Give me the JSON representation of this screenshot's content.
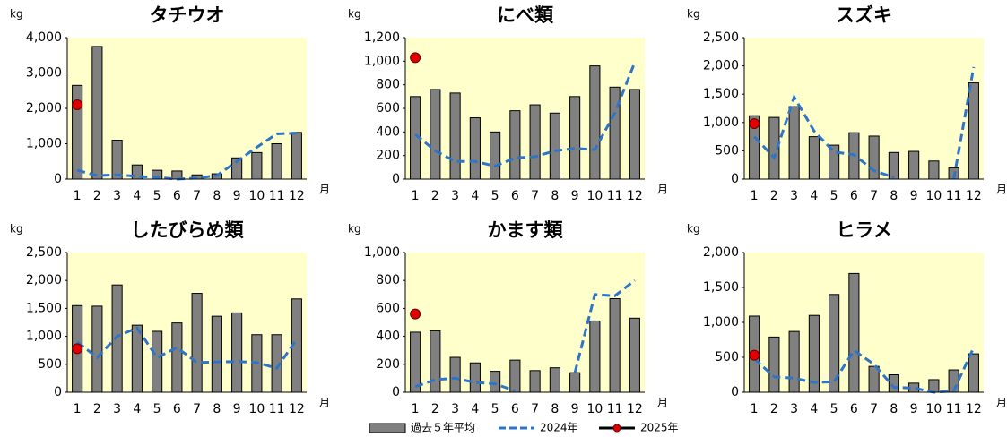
{
  "chart_data": [
    {
      "type": "combo",
      "title": "タチウオ",
      "y_label": "kg",
      "x_label": "月",
      "categories": [
        "1",
        "2",
        "3",
        "4",
        "5",
        "6",
        "7",
        "8",
        "9",
        "10",
        "11",
        "12"
      ],
      "ylim": [
        0,
        4000
      ],
      "yticks": [
        0,
        {
          "value": 1000,
          "label": "1,000"
        },
        {
          "value": 2000,
          "label": "2,000"
        },
        {
          "value": 3000,
          "label": "3,000"
        },
        {
          "value": 4000,
          "label": "4,000"
        }
      ],
      "series": [
        {
          "name": "過去５年平均",
          "type": "bar",
          "color": "#808080",
          "values": [
            2650,
            3750,
            1100,
            400,
            250,
            230,
            120,
            150,
            600,
            750,
            1000,
            1320
          ]
        },
        {
          "name": "2024年",
          "type": "line",
          "dash": true,
          "color": "#2e75c8",
          "values": [
            250,
            100,
            120,
            80,
            50,
            0,
            30,
            100,
            500,
            900,
            1280,
            1300
          ]
        },
        {
          "name": "2025年",
          "type": "line",
          "marker": true,
          "color": "#e00000",
          "values": [
            2100,
            null,
            null,
            null,
            null,
            null,
            null,
            null,
            null,
            null,
            null,
            null
          ]
        }
      ]
    },
    {
      "type": "combo",
      "title": "にべ類",
      "y_label": "kg",
      "x_label": "月",
      "categories": [
        "1",
        "2",
        "3",
        "4",
        "5",
        "6",
        "7",
        "8",
        "9",
        "10",
        "11",
        "12"
      ],
      "ylim": [
        0,
        1200
      ],
      "yticks": [
        0,
        200,
        400,
        600,
        800,
        {
          "value": 1000,
          "label": "1,000"
        },
        {
          "value": 1200,
          "label": "1,200"
        }
      ],
      "series": [
        {
          "name": "過去５年平均",
          "type": "bar",
          "color": "#808080",
          "values": [
            700,
            760,
            730,
            520,
            400,
            580,
            630,
            560,
            700,
            960,
            780,
            760
          ]
        },
        {
          "name": "2024年",
          "type": "line",
          "dash": true,
          "color": "#2e75c8",
          "values": [
            380,
            240,
            150,
            150,
            110,
            180,
            190,
            240,
            260,
            250,
            560,
            990
          ]
        },
        {
          "name": "2025年",
          "type": "line",
          "marker": true,
          "color": "#e00000",
          "values": [
            1030,
            null,
            null,
            null,
            null,
            null,
            null,
            null,
            null,
            null,
            null,
            null
          ]
        }
      ]
    },
    {
      "type": "combo",
      "title": "スズキ",
      "y_label": "kg",
      "x_label": "月",
      "categories": [
        "1",
        "2",
        "3",
        "4",
        "5",
        "6",
        "7",
        "8",
        "9",
        "10",
        "11",
        "12"
      ],
      "ylim": [
        0,
        2500
      ],
      "yticks": [
        0,
        500,
        {
          "value": 1000,
          "label": "1,000"
        },
        {
          "value": 1500,
          "label": "1,500"
        },
        {
          "value": 2000,
          "label": "2,000"
        },
        {
          "value": 2500,
          "label": "2,500"
        }
      ],
      "series": [
        {
          "name": "過去５年平均",
          "type": "bar",
          "color": "#808080",
          "values": [
            1120,
            1090,
            1280,
            750,
            600,
            820,
            760,
            470,
            490,
            320,
            200,
            1700
          ]
        },
        {
          "name": "2024年",
          "type": "line",
          "dash": true,
          "color": "#2e75c8",
          "values": [
            750,
            380,
            1450,
            850,
            480,
            430,
            150,
            30,
            null,
            null,
            0,
            1980
          ]
        },
        {
          "name": "2025年",
          "type": "line",
          "marker": true,
          "color": "#e00000",
          "values": [
            980,
            null,
            null,
            null,
            null,
            null,
            null,
            null,
            null,
            null,
            null,
            null
          ]
        }
      ]
    },
    {
      "type": "combo",
      "title": "したびらめ類",
      "y_label": "kg",
      "x_label": "月",
      "categories": [
        "1",
        "2",
        "3",
        "4",
        "5",
        "6",
        "7",
        "8",
        "9",
        "10",
        "11",
        "12"
      ],
      "ylim": [
        0,
        2500
      ],
      "yticks": [
        0,
        500,
        {
          "value": 1000,
          "label": "1,000"
        },
        {
          "value": 1500,
          "label": "1,500"
        },
        {
          "value": 2000,
          "label": "2,000"
        },
        {
          "value": 2500,
          "label": "2,500"
        }
      ],
      "series": [
        {
          "name": "過去５年平均",
          "type": "bar",
          "color": "#808080",
          "values": [
            1550,
            1540,
            1920,
            1200,
            1090,
            1240,
            1770,
            1360,
            1420,
            1030,
            1030,
            1670
          ]
        },
        {
          "name": "2024年",
          "type": "line",
          "dash": true,
          "color": "#2e75c8",
          "values": [
            900,
            620,
            1000,
            1150,
            620,
            800,
            530,
            540,
            550,
            530,
            430,
            950
          ]
        },
        {
          "name": "2025年",
          "type": "line",
          "marker": true,
          "color": "#e00000",
          "values": [
            780,
            null,
            null,
            null,
            null,
            null,
            null,
            null,
            null,
            null,
            null,
            null
          ]
        }
      ]
    },
    {
      "type": "combo",
      "title": "かます類",
      "y_label": "kg",
      "x_label": "月",
      "categories": [
        "1",
        "2",
        "3",
        "4",
        "5",
        "6",
        "7",
        "8",
        "9",
        "10",
        "11",
        "12"
      ],
      "ylim": [
        0,
        1000
      ],
      "yticks": [
        0,
        200,
        400,
        600,
        800,
        {
          "value": 1000,
          "label": "1,000"
        }
      ],
      "series": [
        {
          "name": "過去５年平均",
          "type": "bar",
          "color": "#808080",
          "values": [
            430,
            440,
            250,
            210,
            150,
            230,
            155,
            175,
            140,
            510,
            670,
            530
          ]
        },
        {
          "name": "2024年",
          "type": "line",
          "dash": true,
          "color": "#2e75c8",
          "values": [
            40,
            90,
            100,
            70,
            60,
            10,
            null,
            null,
            140,
            700,
            690,
            800
          ]
        },
        {
          "name": "2025年",
          "type": "line",
          "marker": true,
          "color": "#e00000",
          "values": [
            560,
            null,
            null,
            null,
            null,
            null,
            null,
            null,
            null,
            null,
            null,
            null
          ]
        }
      ]
    },
    {
      "type": "combo",
      "title": "ヒラメ",
      "y_label": "kg",
      "x_label": "月",
      "categories": [
        "1",
        "2",
        "3",
        "4",
        "5",
        "6",
        "7",
        "8",
        "9",
        "10",
        "11",
        "12"
      ],
      "ylim": [
        0,
        2000
      ],
      "yticks": [
        0,
        500,
        {
          "value": 1000,
          "label": "1,000"
        },
        {
          "value": 1500,
          "label": "1,500"
        },
        {
          "value": 2000,
          "label": "2,000"
        }
      ],
      "series": [
        {
          "name": "過去５年平均",
          "type": "bar",
          "color": "#808080",
          "values": [
            1090,
            790,
            870,
            1100,
            1400,
            1700,
            370,
            250,
            130,
            180,
            320,
            550
          ]
        },
        {
          "name": "2024年",
          "type": "line",
          "dash": true,
          "color": "#2e75c8",
          "values": [
            480,
            220,
            200,
            140,
            150,
            600,
            400,
            70,
            60,
            0,
            20,
            640
          ]
        },
        {
          "name": "2025年",
          "type": "line",
          "marker": true,
          "color": "#e00000",
          "values": [
            530,
            null,
            null,
            null,
            null,
            null,
            null,
            null,
            null,
            null,
            null,
            null
          ]
        }
      ]
    }
  ]
}
